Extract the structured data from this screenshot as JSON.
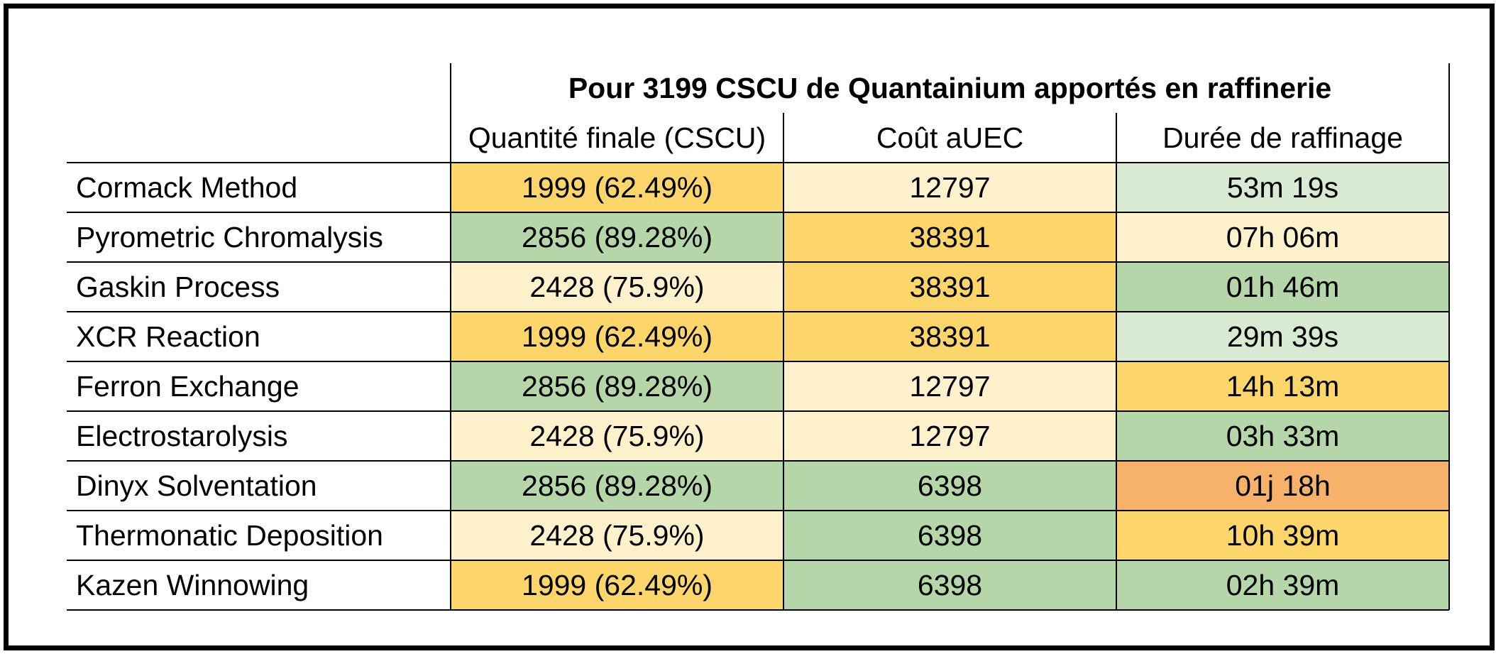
{
  "title": "Pour 3199 CSCU de Quantainium apportés en raffinerie",
  "columns": [
    "Quantité finale (CSCU)",
    "Coût aUEC",
    "Durée de raffinage"
  ],
  "colors": {
    "green": "#b5d6a9",
    "light_green": "#d9ead3",
    "yellow": "#fdd66b",
    "light_yellow": "#fff1cc",
    "orange": "#f6b26b"
  },
  "rows": [
    {
      "name": "Cormack Method",
      "qty": "1999 (62.49%)",
      "qty_color": "yellow",
      "cost": "12797",
      "cost_color": "light_yellow",
      "time": "53m 19s",
      "time_color": "light_green"
    },
    {
      "name": "Pyrometric Chromalysis",
      "qty": "2856 (89.28%)",
      "qty_color": "green",
      "cost": "38391",
      "cost_color": "yellow",
      "time": "07h 06m",
      "time_color": "light_yellow"
    },
    {
      "name": "Gaskin Process",
      "qty": "2428 (75.9%)",
      "qty_color": "light_yellow",
      "cost": "38391",
      "cost_color": "yellow",
      "time": "01h 46m",
      "time_color": "green"
    },
    {
      "name": "XCR Reaction",
      "qty": "1999 (62.49%)",
      "qty_color": "yellow",
      "cost": "38391",
      "cost_color": "yellow",
      "time": "29m 39s",
      "time_color": "light_green"
    },
    {
      "name": "Ferron Exchange",
      "qty": "2856 (89.28%)",
      "qty_color": "green",
      "cost": "12797",
      "cost_color": "light_yellow",
      "time": "14h 13m",
      "time_color": "yellow"
    },
    {
      "name": "Electrostarolysis",
      "qty": "2428 (75.9%)",
      "qty_color": "light_yellow",
      "cost": "12797",
      "cost_color": "light_yellow",
      "time": "03h 33m",
      "time_color": "green"
    },
    {
      "name": "Dinyx Solventation",
      "qty": "2856 (89.28%)",
      "qty_color": "green",
      "cost": "6398",
      "cost_color": "green",
      "time": "01j 18h",
      "time_color": "orange"
    },
    {
      "name": "Thermonatic Deposition",
      "qty": "2428 (75.9%)",
      "qty_color": "light_yellow",
      "cost": "6398",
      "cost_color": "green",
      "time": "10h 39m",
      "time_color": "yellow"
    },
    {
      "name": "Kazen Winnowing",
      "qty": "1999 (62.49%)",
      "qty_color": "yellow",
      "cost": "6398",
      "cost_color": "green",
      "time": "02h 39m",
      "time_color": "green"
    }
  ]
}
